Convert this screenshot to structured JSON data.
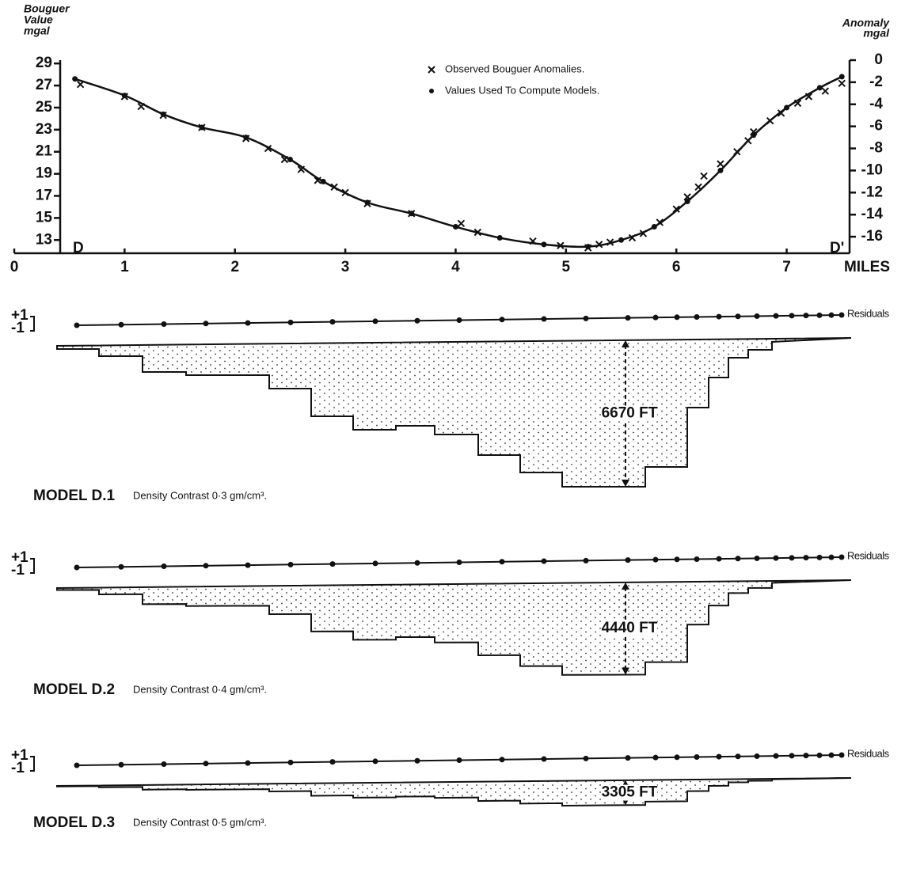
{
  "chart_data": {
    "type": "line",
    "y_label": [
      "Bouguer",
      "Value",
      "mgal"
    ],
    "y2_label": [
      "Anomaly",
      "mgal"
    ],
    "x_label": "MILES",
    "profile_ends": [
      "D",
      "D'"
    ],
    "xlim": [
      0,
      7.57
    ],
    "xticks": [
      0,
      1,
      2,
      3,
      4,
      5,
      6,
      7
    ],
    "ylim": [
      11.8,
      29.3
    ],
    "yticks": [
      13,
      15,
      17,
      19,
      21,
      23,
      25,
      27,
      29
    ],
    "y2lim": [
      -17.5,
      0
    ],
    "y2ticks": [
      0,
      -2,
      -4,
      -6,
      -8,
      -10,
      -12,
      -14,
      -16
    ],
    "series": [
      {
        "name": "Observed Bouguer Anomalies.",
        "marker": "x",
        "color": "#111",
        "x": [
          0.6,
          1.0,
          1.15,
          1.35,
          1.7,
          2.1,
          2.3,
          2.45,
          2.6,
          2.75,
          2.9,
          3.0,
          3.2,
          3.6,
          4.05,
          4.2,
          4.7,
          4.95,
          5.2,
          5.3,
          5.4,
          5.6,
          5.7,
          5.85,
          6.0,
          6.1,
          6.2,
          6.25,
          6.4,
          6.55,
          6.65,
          6.7,
          6.85,
          6.95,
          7.1,
          7.2,
          7.35,
          7.5
        ],
        "values": [
          27.1,
          26.0,
          25.1,
          24.3,
          23.2,
          22.2,
          21.3,
          20.3,
          19.4,
          18.4,
          17.8,
          17.3,
          16.3,
          15.4,
          14.5,
          13.7,
          12.9,
          12.5,
          12.3,
          12.6,
          12.8,
          13.2,
          13.6,
          14.6,
          15.8,
          16.9,
          17.8,
          18.8,
          19.9,
          21.0,
          22.0,
          22.8,
          23.8,
          24.5,
          25.4,
          26.0,
          26.5,
          27.2
        ]
      },
      {
        "name": "Values Used To Compute Models.",
        "marker": "dot",
        "line": true,
        "color": "#111",
        "x": [
          0.55,
          1.0,
          1.35,
          1.7,
          2.1,
          2.5,
          2.8,
          3.2,
          3.6,
          4.0,
          4.4,
          4.8,
          5.2,
          5.5,
          5.8,
          6.1,
          6.4,
          6.7,
          7.0,
          7.3,
          7.5
        ],
        "values": [
          27.6,
          26.1,
          24.4,
          23.2,
          22.3,
          20.3,
          18.3,
          16.4,
          15.4,
          14.2,
          13.2,
          12.6,
          12.4,
          13.0,
          14.2,
          16.5,
          19.3,
          22.5,
          25.0,
          26.8,
          27.8
        ]
      }
    ]
  },
  "models": {
    "residual_ticks": [
      "+1",
      "-1"
    ],
    "residuals_label": "Residuals",
    "panels": [
      {
        "title": "MODEL D.1",
        "caption": "Density Contrast 0·3 gm/cm³.",
        "depth": "6670 FT"
      },
      {
        "title": "MODEL D.2",
        "caption": "Density Contrast 0·4 gm/cm³.",
        "depth": "4440 FT"
      },
      {
        "title": "MODEL D.3",
        "caption": "Density Contrast 0·5 gm/cm³.",
        "depth": "3305 FT"
      }
    ]
  }
}
